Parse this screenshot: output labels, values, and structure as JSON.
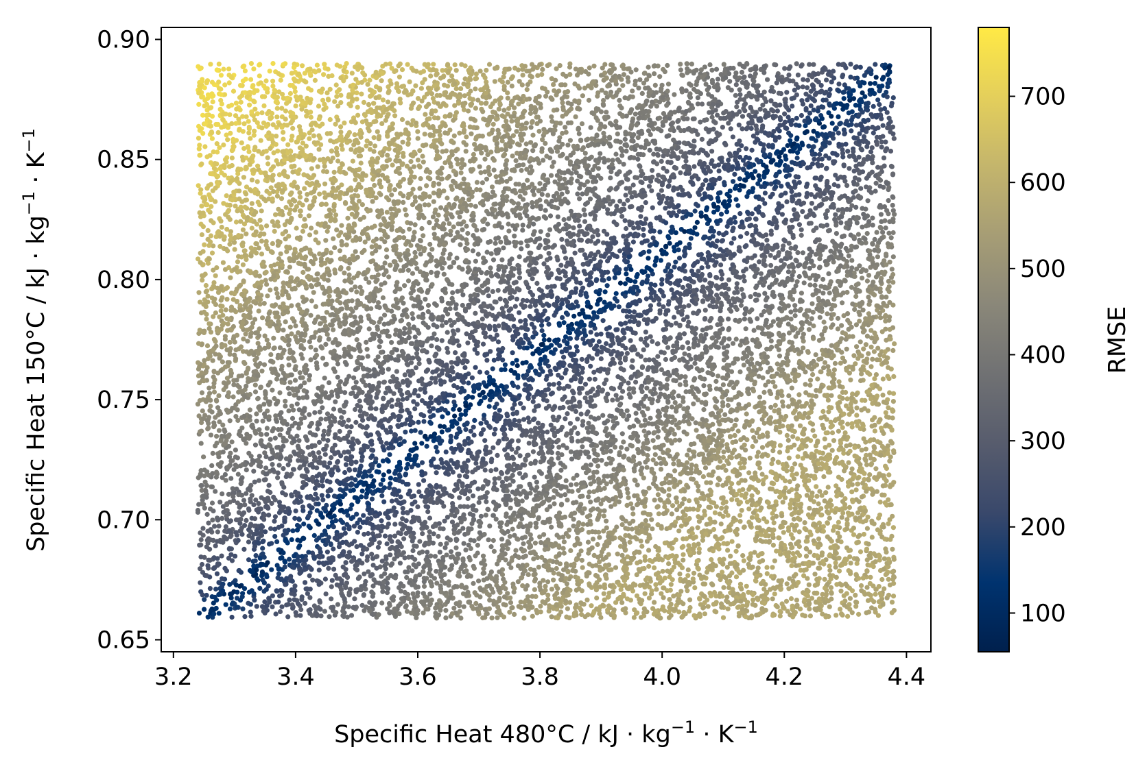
{
  "chart_data": {
    "type": "scatter",
    "title": "",
    "xlabel": {
      "main": "Specific Heat 480°C / kJ · kg",
      "sup1": "−1",
      "mid": " · K",
      "sup2": "−1"
    },
    "ylabel": {
      "main": "Specific Heat 150°C / kJ · kg",
      "sup1": "−1",
      "mid": " · K",
      "sup2": "−1"
    },
    "xlim": [
      3.18,
      4.44
    ],
    "ylim": [
      0.645,
      0.905
    ],
    "xticks": [
      3.2,
      3.4,
      3.6,
      3.8,
      4.0,
      4.2,
      4.4
    ],
    "xtick_labels": [
      "3.2",
      "3.4",
      "3.6",
      "3.8",
      "4.0",
      "4.2",
      "4.4"
    ],
    "yticks": [
      0.65,
      0.7,
      0.75,
      0.8,
      0.85,
      0.9
    ],
    "ytick_labels": [
      "0.65",
      "0.70",
      "0.75",
      "0.80",
      "0.85",
      "0.90"
    ],
    "grid": false,
    "points": {
      "count": 14000,
      "x_range": [
        3.24,
        4.38
      ],
      "y_range": [
        0.659,
        0.89
      ],
      "valley": [
        [
          3.24,
          0.659
        ],
        [
          4.38,
          0.89
        ]
      ],
      "rmse_range": [
        55,
        780
      ]
    },
    "colorbar": {
      "label": "RMSE",
      "colormap": "cividis",
      "vmin": 55,
      "vmax": 780,
      "ticks": [
        100,
        200,
        300,
        400,
        500,
        600,
        700
      ],
      "tick_labels": [
        "100",
        "200",
        "300",
        "400",
        "500",
        "600",
        "700"
      ],
      "colors": [
        "#00204d",
        "#00336f",
        "#39486b",
        "#575c6d",
        "#707173",
        "#8a8779",
        "#a69d75",
        "#c4b56c",
        "#e4cf5b",
        "#ffe945"
      ]
    }
  }
}
